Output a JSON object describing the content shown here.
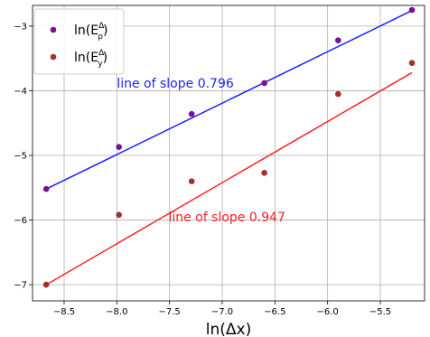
{
  "chart_data": {
    "type": "scatter",
    "xlabel": "ln(Δx)",
    "ylabel": "",
    "xlim": [
      -8.8,
      -5.08
    ],
    "ylim": [
      -7.25,
      -2.68
    ],
    "x_ticks": [
      -8.5,
      -8.0,
      -7.5,
      -7.0,
      -6.5,
      -6.0,
      -5.5
    ],
    "x_tick_labels": [
      "−8.5",
      "−8.0",
      "−7.5",
      "−7.0",
      "−6.5",
      "−6.0",
      "−5.5"
    ],
    "y_ticks": [
      -3,
      -4,
      -5,
      -6,
      -7
    ],
    "y_tick_labels": [
      "−3",
      "−4",
      "−5",
      "−6",
      "−7"
    ],
    "grid": true,
    "legend_position": "top-left",
    "series": [
      {
        "name": "ln(E_ρ^Δ)",
        "legend_main": "ln(E",
        "legend_sub": "ρ",
        "legend_sup": "Δ",
        "color": "#7a0f99",
        "x": [
          -8.67,
          -7.98,
          -7.29,
          -6.6,
          -5.9,
          -5.2
        ],
        "y": [
          -5.52,
          -4.87,
          -4.36,
          -3.88,
          -3.22,
          -2.75
        ]
      },
      {
        "name": "ln(E_y^Δ)",
        "legend_main": "ln(E",
        "legend_sub": "y",
        "legend_sup": "Δ",
        "color": "#a3302a",
        "x": [
          -8.67,
          -7.98,
          -7.29,
          -6.6,
          -5.9,
          -5.2
        ],
        "y": [
          -7.0,
          -5.92,
          -5.4,
          -5.27,
          -4.05,
          -3.57
        ]
      }
    ],
    "fit_lines": [
      {
        "color": "#1f1fff",
        "x": [
          -8.67,
          -5.2
        ],
        "y": [
          -5.52,
          -2.76
        ]
      },
      {
        "color": "#ff2020",
        "x": [
          -8.67,
          -5.2
        ],
        "y": [
          -7.0,
          -3.72
        ]
      }
    ],
    "annotations": [
      {
        "text": "line of slope 0.796",
        "x": -8.0,
        "y": -3.95,
        "color": "#1f1fff"
      },
      {
        "text": "line of slope 0.947",
        "x": -7.51,
        "y": -6.02,
        "color": "#ff2020"
      }
    ]
  }
}
